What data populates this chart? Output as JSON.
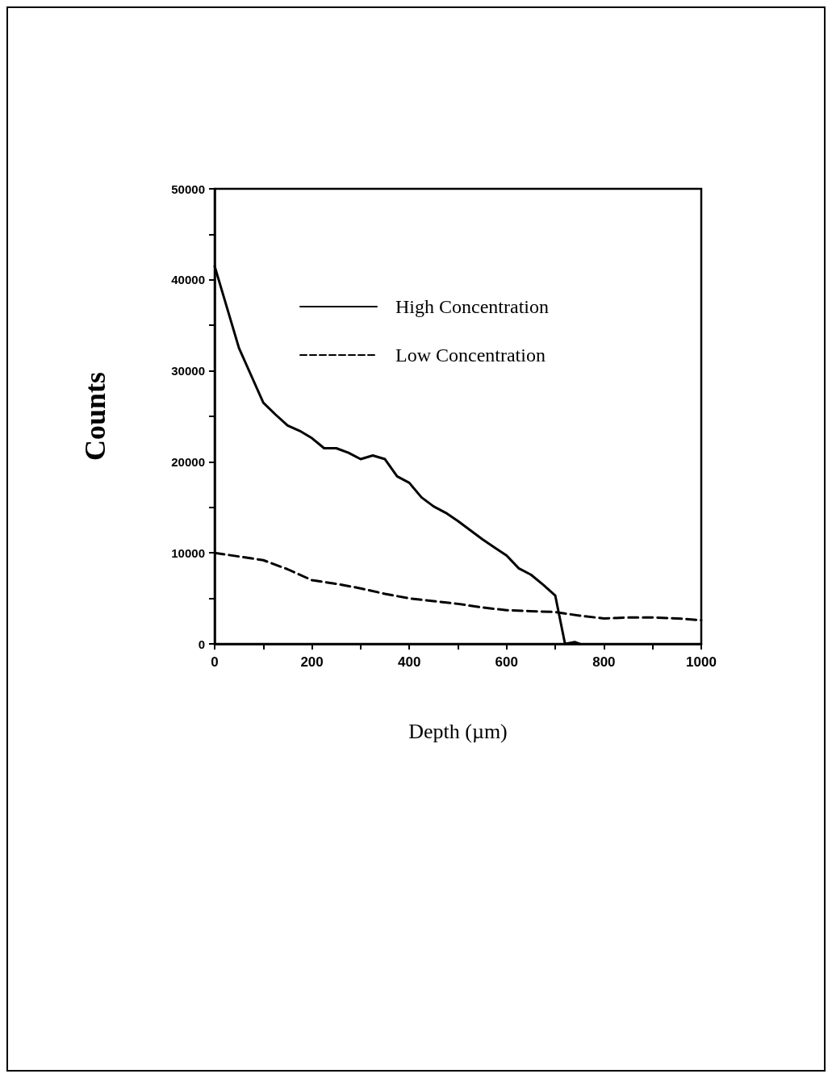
{
  "chart_data": {
    "type": "line",
    "xlabel": "Depth (µm)",
    "ylabel": "Counts",
    "xlim": [
      0,
      1000
    ],
    "ylim": [
      0,
      50000
    ],
    "xticks": [
      0,
      {
        "value": 100,
        "label": null
      },
      200,
      {
        "value": 300,
        "label": null
      },
      400,
      {
        "value": 500,
        "label": null
      },
      600,
      {
        "value": 700,
        "label": null
      },
      800,
      {
        "value": 900,
        "label": null
      },
      1000
    ],
    "yticks": [
      0,
      {
        "value": 5000,
        "label": null
      },
      10000,
      {
        "value": 15000,
        "label": null
      },
      20000,
      {
        "value": 25000,
        "label": null
      },
      30000,
      {
        "value": 35000,
        "label": null
      },
      40000,
      {
        "value": 45000,
        "label": null
      },
      50000
    ],
    "grid": false,
    "legend": "top",
    "marker": "none",
    "series": [
      {
        "name": "High Concentration",
        "color": "#000000",
        "line_style": "solid",
        "x": [
          0,
          25,
          50,
          75,
          100,
          125,
          150,
          175,
          200,
          225,
          250,
          275,
          300,
          325,
          350,
          375,
          400,
          425,
          450,
          475,
          500,
          525,
          550,
          575,
          600,
          625,
          650,
          675,
          700,
          720,
          740,
          750
        ],
        "values": [
          41500,
          37000,
          32500,
          29500,
          26500,
          25200,
          24000,
          23400,
          22600,
          21500,
          21500,
          21000,
          20300,
          20700,
          20300,
          18400,
          17700,
          16100,
          15100,
          14400,
          13500,
          12500,
          11500,
          10600,
          9700,
          8300,
          7600,
          6500,
          5300,
          0,
          200,
          0
        ]
      },
      {
        "name": "Low Concentration",
        "color": "#000000",
        "line_style": "dashed",
        "x": [
          0,
          50,
          100,
          150,
          200,
          250,
          300,
          350,
          400,
          450,
          500,
          550,
          600,
          650,
          700,
          750,
          800,
          850,
          900,
          950,
          1000
        ],
        "values": [
          10000,
          9600,
          9200,
          8200,
          7000,
          6600,
          6100,
          5500,
          5000,
          4700,
          4400,
          4000,
          3700,
          3600,
          3500,
          3100,
          2800,
          2900,
          2900,
          2800,
          2600
        ]
      }
    ]
  }
}
